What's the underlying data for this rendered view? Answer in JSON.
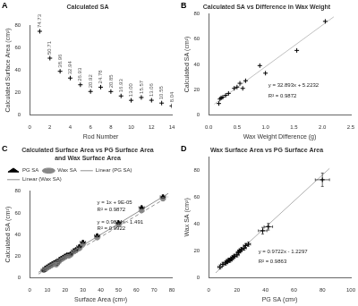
{
  "chart_data": [
    {
      "type": "scatter",
      "title": "Calculated SA",
      "xlabel": "Rod Number",
      "ylabel": "Calculated Surface Area (cm²)",
      "series": [
        {
          "x": [
            1,
            2,
            3,
            4,
            5,
            6,
            7,
            8,
            9,
            10,
            11,
            12,
            13,
            14
          ],
          "values": [
            74.73,
            50.71,
            38.96,
            32.94,
            26.93,
            20.92,
            24.78,
            20.85,
            16.93,
            13.0,
            15.57,
            13.06,
            10.55,
            8.04
          ],
          "value_labels": [
            "74.73",
            "50.71",
            "38.96",
            "32.94",
            "26.93",
            "20.92",
            "24.78",
            "20.85",
            "16.93",
            "13.00",
            "15.57",
            "13.06",
            "10.55",
            "8.04"
          ],
          "color": "black",
          "marker": "plus"
        }
      ],
      "data_labels": true,
      "xlim": [
        0,
        14
      ],
      "ylim": [
        0,
        80
      ],
      "xticks": [
        0,
        2,
        4,
        6,
        8,
        10,
        12,
        14
      ],
      "yticks": [
        0,
        20,
        40,
        60,
        80
      ],
      "grid": false,
      "annotations": [
        {
          "text": "A"
        }
      ]
    },
    {
      "type": "scatter",
      "title": "Calculated SA vs Difference in Wax Weight",
      "xlabel": "Wax Weight Difference (g)",
      "ylabel": "Calculated SA (cm²)",
      "series": [
        {
          "x": [
            0.18,
            0.2,
            0.22,
            0.25,
            0.3,
            0.35,
            0.45,
            0.5,
            0.55,
            0.6,
            0.65,
            0.9,
            1.0,
            1.55,
            2.05
          ],
          "values": [
            9.0,
            12.5,
            13.5,
            14.0,
            15.5,
            17.0,
            21.0,
            22.0,
            25.0,
            21.0,
            27.0,
            39.0,
            33.0,
            51.0,
            74.0
          ],
          "color": "black",
          "marker": "plus"
        },
        {
          "type": "line",
          "x": [
            0.1,
            2.2
          ],
          "values": [
            8.5125,
            77.5878
          ],
          "color": "#c0c0c0",
          "line_style": "solid"
        }
      ],
      "xlim": [
        0,
        2.5
      ],
      "ylim": [
        0,
        80
      ],
      "xticks": [
        {
          "value": 0,
          "label": "0.0"
        },
        0.5,
        {
          "value": 1,
          "label": "1.0"
        },
        1.5,
        {
          "value": 2,
          "label": "2.0"
        },
        2.5
      ],
      "yticks": [
        0,
        20,
        40,
        60,
        80
      ],
      "grid": false,
      "annotations": [
        {
          "text": "B"
        },
        {
          "text": "y = 32.893x + 5.2232",
          "x": 1.05,
          "y": 22
        },
        {
          "text": "R² = 0.9872",
          "x": 1.05,
          "y": 14
        }
      ]
    },
    {
      "type": "scatter",
      "title": "Calculated Surface Area vs PG Surface Area\nand Wax Surface Area",
      "xlabel": "Surface Area (cm²)",
      "ylabel": "Calculated SA (cm²)",
      "series": [
        {
          "name": "PG SA",
          "x": [
            8,
            9,
            10,
            11,
            12,
            13,
            14,
            15,
            15,
            16,
            17,
            18,
            19,
            20,
            21,
            22,
            23,
            25,
            26,
            28,
            30,
            38,
            50,
            63,
            75
          ],
          "values": [
            7,
            9,
            10,
            11,
            12,
            13,
            14,
            13,
            15,
            15,
            17,
            18,
            19,
            20,
            21,
            21,
            22,
            25,
            26,
            29,
            33,
            39,
            51,
            65,
            75
          ],
          "xerr": 1.5,
          "yerr": 1.5,
          "color": "black",
          "marker": "triangle"
        },
        {
          "name": "Wax SA",
          "x": [
            8,
            9,
            10,
            11,
            12,
            13,
            14,
            15,
            15,
            16,
            17,
            18,
            19,
            20,
            21,
            22,
            23,
            25,
            26,
            28,
            30,
            38,
            50,
            63,
            75
          ],
          "values": [
            7,
            8,
            9,
            10,
            11,
            12,
            13,
            12,
            14,
            14,
            16,
            17,
            18,
            19,
            20,
            20,
            21,
            24,
            25,
            27,
            31,
            37,
            49,
            62,
            73
          ],
          "xerr": 1.5,
          "yerr": 1.5,
          "color": "#888888",
          "marker": "circle"
        },
        {
          "name": "Linear (PG SA)",
          "type": "line",
          "x": [
            5,
            78
          ],
          "values": [
            5.00009,
            78.00009
          ],
          "color": "#909090",
          "line_style": "solid"
        },
        {
          "name": "Linear (Wax SA)",
          "type": "line",
          "x": [
            5,
            78
          ],
          "values": [
            3.416,
            75.0582
          ],
          "color": "#909090",
          "line_style": "dashed"
        }
      ],
      "legend": "upper left",
      "xlim": [
        0,
        80
      ],
      "ylim": [
        0,
        80
      ],
      "xticks": [
        0,
        10,
        20,
        30,
        40,
        50,
        60,
        70,
        80
      ],
      "yticks": [
        0,
        20,
        40,
        60,
        80
      ],
      "grid": false,
      "annotations": [
        {
          "text": "C"
        },
        {
          "text": "y = 1x + 9E-05",
          "x": 38,
          "y": 68
        },
        {
          "text": "R² = 0.9872",
          "x": 38,
          "y": 62
        },
        {
          "text": "y = 0.9814x - 1.491",
          "x": 38,
          "y": 50
        },
        {
          "text": "R² = 0.9922",
          "x": 38,
          "y": 44
        }
      ]
    },
    {
      "type": "scatter",
      "title": "Wax Surface Area vs PG Surface Area",
      "xlabel": "PG SA (cm²)",
      "ylabel": "Wax SA (cm²)",
      "series": [
        {
          "x": [
            8,
            10,
            12,
            13,
            14,
            15,
            16,
            17,
            18,
            20,
            21,
            22,
            23,
            25,
            26,
            28,
            38,
            42,
            80
          ],
          "values": [
            8,
            10,
            11,
            12,
            13,
            13,
            14,
            15,
            16,
            17,
            19,
            20,
            21,
            22,
            24,
            25,
            35,
            38,
            73
          ],
          "xerr": [
            1.5,
            1.5,
            1.5,
            1.5,
            1.5,
            1.5,
            1.5,
            1.5,
            1.5,
            1.5,
            1.5,
            1.5,
            1.5,
            1.5,
            1.5,
            1.5,
            3.0,
            3.0,
            5.0
          ],
          "yerr": [
            1.5,
            1.5,
            1.5,
            1.5,
            1.5,
            1.5,
            1.5,
            1.5,
            1.5,
            1.5,
            1.5,
            1.5,
            1.5,
            1.5,
            1.5,
            1.5,
            2.5,
            2.5,
            5.0
          ],
          "color": "black",
          "marker": "plus"
        },
        {
          "type": "line",
          "x": [
            5,
            85
          ],
          "values": [
            3.6313,
            81.4073
          ],
          "color": "#b0b0b0",
          "line_style": "solid"
        }
      ],
      "xlim": [
        0,
        100
      ],
      "ylim": [
        0,
        90
      ],
      "xticks": [
        0,
        20,
        40,
        60,
        80,
        100
      ],
      "yticks": [
        0,
        20,
        40,
        60,
        80
      ],
      "grid": false,
      "annotations": [
        {
          "text": "D"
        },
        {
          "text": "y = 0.9722x - 1.2297",
          "x": 35,
          "y": 18
        },
        {
          "text": "R² = 0.9863",
          "x": 35,
          "y": 11
        }
      ]
    }
  ]
}
